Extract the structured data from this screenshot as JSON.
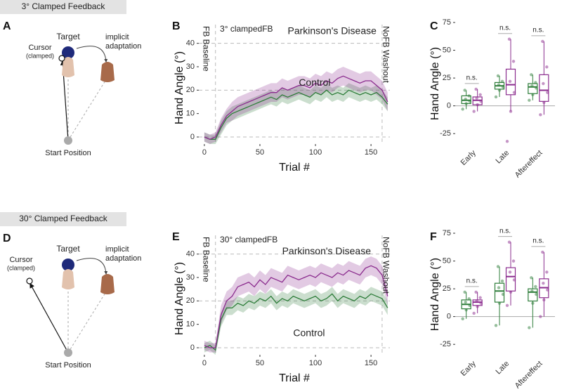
{
  "diagrams": [
    {
      "panel_label": "A",
      "title": "3° Clamped Feedback",
      "target": "Target",
      "cursor": "Cursor",
      "cursor_note": "(clamped)",
      "adaptation": [
        "implicit",
        "adaptation"
      ],
      "start": "Start Position"
    },
    {
      "panel_label": "D",
      "title": "30° Clamped Feedback",
      "target": "Target",
      "cursor": "Cursor",
      "cursor_note": "(clamped)",
      "adaptation": [
        "implicit",
        "adaptation"
      ],
      "start": "Start Position"
    }
  ],
  "chart_data": [
    {
      "type": "line",
      "panel_label": "B",
      "xlabel": "Trial #",
      "ylabel": "Hand Angle (°)",
      "xlim": [
        -5,
        167
      ],
      "xticks": [
        0,
        50,
        100,
        150
      ],
      "ylim": [
        -3,
        45
      ],
      "yticks": [
        0,
        10,
        20,
        30,
        40
      ],
      "hlines": [
        0,
        20,
        40
      ],
      "vlines": [
        10,
        160
      ],
      "annotations": [
        {
          "text": "FB Baseline",
          "color": "#999999"
        },
        {
          "text": "3° clampedFB",
          "color": "#999999"
        },
        {
          "text": "NoFB Washout",
          "color": "#999999"
        },
        {
          "text": "Parkinson's Disease",
          "color": "#8b2c8e"
        },
        {
          "text": "Control",
          "color": "#2e7d3a"
        }
      ],
      "x": [
        0,
        5,
        10,
        15,
        20,
        25,
        30,
        35,
        40,
        45,
        50,
        55,
        60,
        65,
        70,
        75,
        80,
        85,
        90,
        95,
        100,
        105,
        110,
        115,
        120,
        125,
        130,
        135,
        140,
        145,
        150,
        155,
        160,
        165
      ],
      "series": [
        {
          "color": "#2e7d3a",
          "values": [
            0,
            -1,
            -1,
            4,
            8,
            10,
            11,
            12,
            13,
            14,
            15,
            16,
            17,
            16,
            18,
            17,
            18,
            19,
            18,
            17,
            19,
            18,
            20,
            18,
            19,
            18,
            20,
            19,
            18,
            19,
            18,
            19,
            17,
            14
          ],
          "errors": [
            2,
            2,
            2,
            3,
            3,
            3,
            3,
            3,
            3,
            3,
            3,
            3,
            3,
            3,
            3,
            3,
            3,
            3,
            3,
            3,
            3,
            3,
            3,
            3,
            3,
            3,
            3,
            3,
            3,
            3,
            3,
            3,
            3,
            3
          ]
        },
        {
          "color": "#8b2c8e",
          "values": [
            0,
            -1,
            0,
            5,
            9,
            11,
            13,
            14,
            15,
            16,
            17,
            18,
            19,
            19,
            21,
            20,
            21,
            22,
            22,
            21,
            23,
            22,
            24,
            23,
            25,
            26,
            25,
            24,
            23,
            24,
            24,
            22,
            20,
            15
          ],
          "errors": [
            2,
            2,
            2,
            3,
            3,
            4,
            4,
            4,
            4,
            4,
            4,
            4,
            4,
            4,
            4,
            4,
            4,
            4,
            4,
            4,
            4,
            4,
            4,
            4,
            4,
            4,
            4,
            4,
            4,
            4,
            4,
            4,
            4,
            4
          ]
        }
      ]
    },
    {
      "type": "box",
      "panel_label": "C",
      "ylabel": "Hand Angle (°)",
      "ylim": [
        -35,
        75
      ],
      "yticks": [
        -25,
        0,
        25,
        50,
        75
      ],
      "categories": [
        "Early",
        "Late",
        "Aftereffect"
      ],
      "labels": [
        "n.s.",
        "n.s.",
        "n.s."
      ],
      "series": [
        {
          "color": "#2e7d3a",
          "boxes": [
            {
              "whislo": -3,
              "q1": 2,
              "med": 5,
              "q3": 9,
              "whishi": 14,
              "points": [
                -3,
                2,
                4,
                6,
                9,
                14
              ]
            },
            {
              "whislo": 8,
              "q1": 15,
              "med": 18,
              "q3": 21,
              "whishi": 27,
              "points": [
                8,
                14,
                17,
                19,
                22,
                27
              ]
            },
            {
              "whislo": 5,
              "q1": 11,
              "med": 17,
              "q3": 20,
              "whishi": 28,
              "points": [
                5,
                10,
                16,
                18,
                21,
                28
              ]
            }
          ]
        },
        {
          "color": "#8b2c8e",
          "boxes": [
            {
              "whislo": -5,
              "q1": 1,
              "med": 5,
              "q3": 8,
              "whishi": 15,
              "points": [
                -5,
                1,
                4,
                7,
                10,
                15
              ]
            },
            {
              "whislo": -5,
              "q1": 10,
              "med": 19,
              "q3": 33,
              "whishi": 60,
              "points": [
                -32,
                -5,
                12,
                22,
                40,
                60
              ]
            },
            {
              "whislo": -8,
              "q1": 4,
              "med": 14,
              "q3": 28,
              "whishi": 58,
              "points": [
                -8,
                3,
                12,
                20,
                35,
                58
              ]
            }
          ]
        }
      ]
    },
    {
      "type": "line",
      "panel_label": "E",
      "xlabel": "Trial #",
      "ylabel": "Hand Angle (°)",
      "xlim": [
        -5,
        167
      ],
      "xticks": [
        0,
        50,
        100,
        150
      ],
      "ylim": [
        -3,
        45
      ],
      "yticks": [
        0,
        10,
        20,
        30,
        40
      ],
      "hlines": [
        0,
        20,
        40
      ],
      "vlines": [
        10,
        160
      ],
      "annotations": [
        {
          "text": "FB Baseline",
          "color": "#999999"
        },
        {
          "text": "30° clampedFB",
          "color": "#999999"
        },
        {
          "text": "NoFB Washout",
          "color": "#999999"
        },
        {
          "text": "Parkinson's Disease",
          "color": "#8b2c8e"
        },
        {
          "text": "Control",
          "color": "#2e7d3a"
        }
      ],
      "x": [
        0,
        5,
        10,
        15,
        20,
        25,
        30,
        35,
        40,
        45,
        50,
        55,
        60,
        65,
        70,
        75,
        80,
        85,
        90,
        95,
        100,
        105,
        110,
        115,
        120,
        125,
        130,
        135,
        140,
        145,
        150,
        155,
        160,
        165
      ],
      "series": [
        {
          "color": "#2e7d3a",
          "values": [
            0,
            1,
            -1,
            12,
            17,
            17,
            19,
            18,
            20,
            19,
            21,
            20,
            22,
            19,
            21,
            20,
            22,
            21,
            20,
            21,
            22,
            20,
            21,
            23,
            20,
            22,
            21,
            20,
            22,
            21,
            23,
            22,
            21,
            17
          ],
          "errors": [
            2,
            2,
            2,
            3,
            3,
            3,
            3,
            3,
            3,
            3,
            3,
            3,
            3,
            3,
            3,
            3,
            3,
            3,
            3,
            3,
            3,
            3,
            3,
            3,
            3,
            3,
            3,
            3,
            3,
            3,
            3,
            3,
            3,
            3
          ]
        },
        {
          "color": "#8b2c8e",
          "values": [
            1,
            0,
            0,
            14,
            20,
            22,
            26,
            27,
            28,
            26,
            29,
            27,
            30,
            29,
            28,
            31,
            30,
            29,
            30,
            31,
            30,
            32,
            31,
            30,
            32,
            31,
            33,
            32,
            31,
            34,
            35,
            34,
            31,
            22
          ],
          "errors": [
            2,
            2,
            2,
            4,
            4,
            4,
            4,
            4,
            4,
            4,
            4,
            4,
            4,
            4,
            4,
            4,
            4,
            4,
            4,
            4,
            4,
            4,
            4,
            4,
            4,
            4,
            4,
            4,
            4,
            4,
            4,
            4,
            4,
            4
          ]
        }
      ]
    },
    {
      "type": "box",
      "panel_label": "F",
      "ylabel": "Hand Angle (°)",
      "ylim": [
        -35,
        75
      ],
      "yticks": [
        -25,
        0,
        25,
        50,
        75
      ],
      "categories": [
        "Early",
        "Late",
        "Aftereffect"
      ],
      "labels": [
        "n.s.",
        "n.s.",
        "n.s."
      ],
      "series": [
        {
          "color": "#2e7d3a",
          "boxes": [
            {
              "whislo": -2,
              "q1": 7,
              "med": 11,
              "q3": 15,
              "whishi": 22,
              "points": [
                -2,
                6,
                10,
                13,
                16,
                22
              ]
            },
            {
              "whislo": -8,
              "q1": 13,
              "med": 23,
              "q3": 30,
              "whishi": 45,
              "points": [
                -8,
                12,
                20,
                26,
                32,
                45
              ]
            },
            {
              "whislo": -10,
              "q1": 14,
              "med": 22,
              "q3": 25,
              "whishi": 35,
              "points": [
                -10,
                12,
                20,
                23,
                27,
                35
              ]
            }
          ]
        },
        {
          "color": "#8b2c8e",
          "boxes": [
            {
              "whislo": 3,
              "q1": 10,
              "med": 13,
              "q3": 15,
              "whishi": 22,
              "points": [
                3,
                9,
                12,
                14,
                17,
                22
              ]
            },
            {
              "whislo": 10,
              "q1": 23,
              "med": 36,
              "q3": 44,
              "whishi": 67,
              "points": [
                10,
                22,
                33,
                40,
                50,
                67
              ]
            },
            {
              "whislo": 0,
              "q1": 17,
              "med": 26,
              "q3": 34,
              "whishi": 58,
              "points": [
                0,
                15,
                24,
                30,
                40,
                58
              ]
            }
          ]
        }
      ]
    }
  ]
}
